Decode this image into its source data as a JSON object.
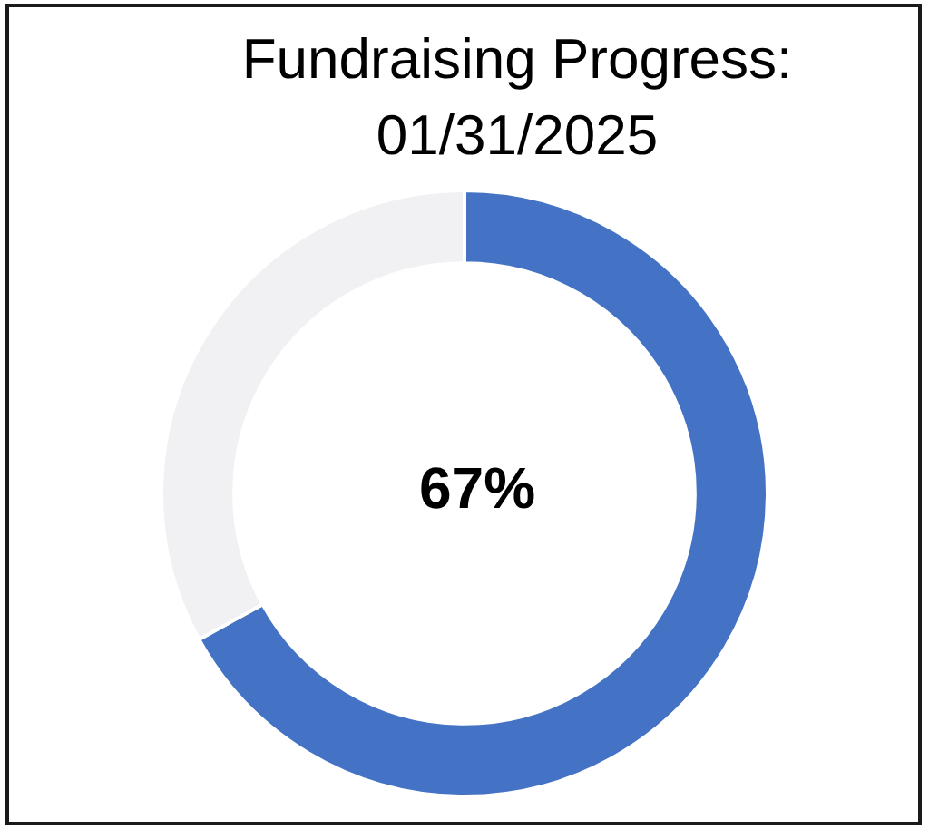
{
  "chart_data": {
    "type": "donut",
    "title": "Fundraising Progress: 01/31/2025",
    "categories": [
      null,
      null
    ],
    "values": [
      67,
      33
    ],
    "colors": [
      "#4472c4",
      "#f1f1f3"
    ],
    "annotations": [
      "67%"
    ]
  }
}
